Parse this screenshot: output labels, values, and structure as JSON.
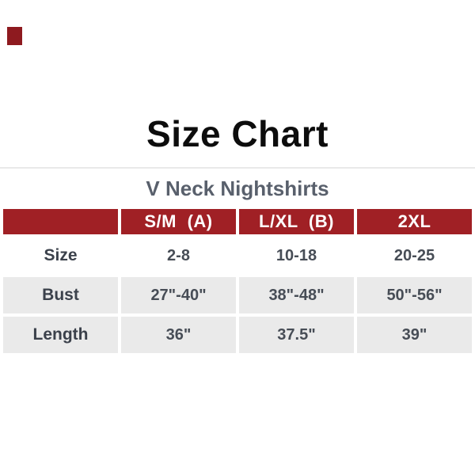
{
  "page": {
    "title": "Size Chart",
    "subtitle": "V Neck Nightshirts"
  },
  "colors": {
    "header_red": "#A02025",
    "corner_square_red": "#8E1A1F",
    "shaded_row_gray": "#EAEAEA",
    "divider_gray": "#E9E9E9",
    "subtitle_gray": "#59606C",
    "label_text": "#3B414B",
    "value_text": "#474D56",
    "title_black": "#0D0D0D",
    "header_text_white": "#FFFFFF"
  },
  "chart_data": {
    "type": "table",
    "title": "Size Chart",
    "subtitle": "V Neck Nightshirts",
    "columns": [
      "S/M (A)",
      "L/XL (B)",
      "2XL"
    ],
    "row_labels": [
      "Size",
      "Bust",
      "Length"
    ],
    "rows": [
      {
        "label": "Size",
        "values": [
          "2-8",
          "10-18",
          "20-25"
        ]
      },
      {
        "label": "Bust",
        "values": [
          "27\"-40\"",
          "38\"-48\"",
          "50\"-56\""
        ]
      },
      {
        "label": "Length",
        "values": [
          "36\"",
          "37.5\"",
          "39\""
        ]
      }
    ],
    "layout_hints": {
      "header_background": "red",
      "shaded_rows": [
        "Bust",
        "Length"
      ],
      "blank_top_left_header_cell": true
    }
  }
}
